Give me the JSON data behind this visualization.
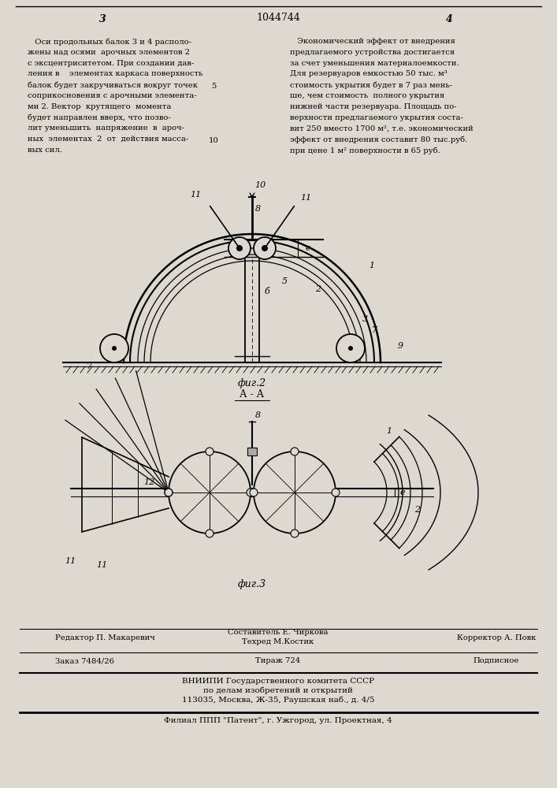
{
  "page_width": 7.07,
  "page_height": 10.0,
  "bg_color": "#ddd9d0",
  "patent_number": "1044744",
  "page_left_num": "3",
  "page_right_num": "4",
  "left_column_text": [
    "   Оси продольных балок 3 и 4 располо-",
    "жены над осями  арочных элементов 2",
    "с эксцентриситетом. При создании дав-",
    "ления в    элементах каркаса поверхность",
    "балок будет закручиваться вокруг точек",
    "соприкосновения с арочными элемента-",
    "ми 2. Вектор  крутящего  момента",
    "будет направлен вверх, что позво-",
    "лит уменьшить  напряжение  в  ароч-",
    "ных  элементах  2  от  действия масса-",
    "вых сил."
  ],
  "right_column_text": [
    "   Экономический эффект от внедрения",
    "предлагаемого устройства достигается",
    "за счет уменьшения материалоемкости.",
    "Для резервуаров емкостью 50 тыс. м³",
    "стоимость укрытия будет в 7 раз мень-",
    "ше, чем стоимость  полного укрытия",
    "нижней части резервуара. Площадь по-",
    "верхности предлагаемого укрытия соста-",
    "вит 250 вместо 1700 м², т.е. экономический",
    "эффект от внедрения составит 80 тыс.руб.",
    "при цене 1 м² поверхности в 65 руб."
  ],
  "fig2_label": "фиг.2",
  "fig2_sublabel": "А - А",
  "fig3_label": "фиг.3",
  "footer_line1_left": "Редактор П. Макаревич",
  "footer_line1_center1": "Составитель Е. Чиркова",
  "footer_line1_center2": "Техред М.Костик",
  "footer_line1_right": "Корректор А. Повк",
  "footer_line2_left": "Заказ 7484/26",
  "footer_line2_center": "Тираж 724",
  "footer_line2_right": "Подписное",
  "footer_line3": "ВНИИПИ Государственного комитета СССР",
  "footer_line4": "по делам изобретений и открытий",
  "footer_line5": "113035, Москва, Ж-35, Раушская наб., д. 4/5",
  "footer_line6": "Филиал ППП \"Патент\", г. Ужгород, ул. Проектная, 4"
}
